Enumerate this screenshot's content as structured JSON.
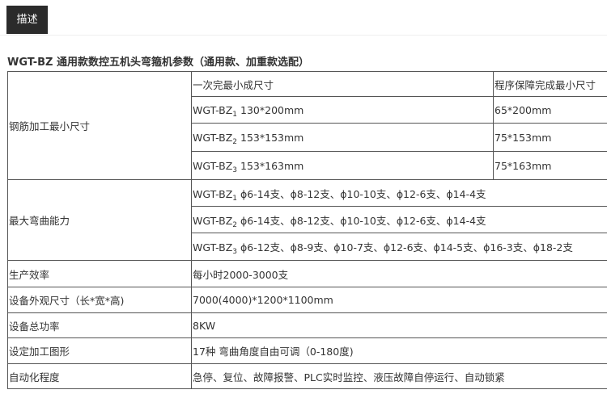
{
  "tab": {
    "label": "描述"
  },
  "title": "WGT-BZ 通用款数控五机头弯箍机参数（通用款、加重款选配）",
  "table": {
    "min_size": {
      "label": "钢筋加工最小尺寸",
      "header_a": "一次完最小成尺寸",
      "header_b": "程序保障完成最小尺寸",
      "rows": [
        {
          "model": "WGT-BZ",
          "sub": "1",
          "a": "130*200mm",
          "b": "65*200mm"
        },
        {
          "model": "WGT-BZ",
          "sub": "2",
          "a": "153*153mm",
          "b": "75*153mm"
        },
        {
          "model": "WGT-BZ",
          "sub": "3",
          "a": "153*163mm",
          "b": "75*163mm"
        }
      ]
    },
    "bending": {
      "label": "最大弯曲能力",
      "rows": [
        {
          "model": "WGT-BZ",
          "sub": "1",
          "value": "ϕ6-14支、ϕ8-12支、ϕ10-10支、ϕ12-6支、ϕ14-4支"
        },
        {
          "model": "WGT-BZ",
          "sub": "2",
          "value": "ϕ6-14支、ϕ8-12支、ϕ10-10支、ϕ12-6支、ϕ14-4支"
        },
        {
          "model": "WGT-BZ",
          "sub": "3",
          "value": "ϕ6-12支、ϕ8-9支、ϕ10-7支、ϕ12-6支、ϕ14-5支、ϕ16-3支、ϕ18-2支"
        }
      ]
    },
    "simple": [
      {
        "label": "生产效率",
        "value": "每小时2000-3000支"
      },
      {
        "label": "设备外观尺寸（长*宽*高)",
        "value": "7000(4000)*1200*1100mm"
      },
      {
        "label": "设备总功率",
        "value": "8KW"
      },
      {
        "label": "设定加工图形",
        "value": "17种 弯曲角度自由可调（0-180度)"
      },
      {
        "label": "自动化程度",
        "value": "急停、复位、故障报警、PLC实时监控、液压故障自停运行、自动锁紧"
      }
    ]
  }
}
